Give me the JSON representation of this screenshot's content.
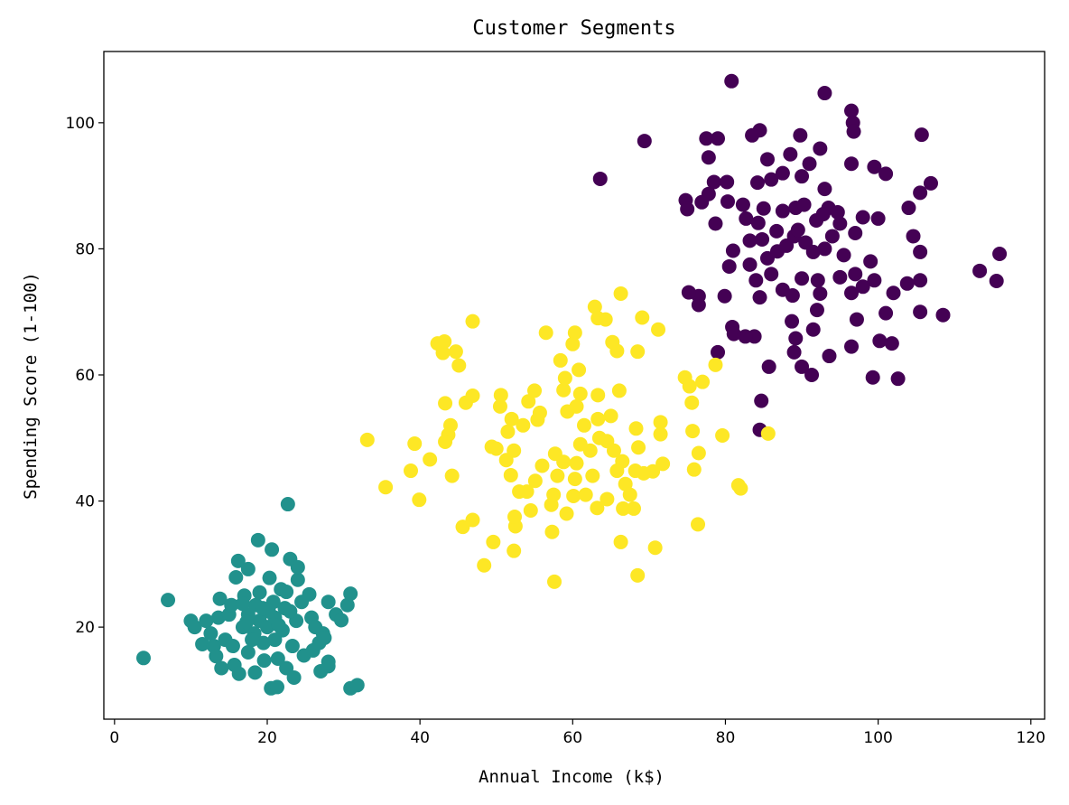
{
  "chart_data": {
    "type": "scatter",
    "title": "Customer Segments",
    "xlabel": "Annual Income (k$)",
    "ylabel": "Spending Score (1-100)",
    "xlim": [
      -1.4,
      121.8
    ],
    "ylim": [
      5.4,
      111.3
    ],
    "xticks": [
      0,
      20,
      40,
      60,
      80,
      100,
      120
    ],
    "yticks": [
      20,
      40,
      60,
      80,
      100
    ],
    "grid": false,
    "series": [
      {
        "name": "cluster-0",
        "color": "#440154",
        "points": [
          [
            80.8,
            106.6
          ],
          [
            93,
            104.7
          ],
          [
            63.6,
            91.1
          ],
          [
            69.4,
            97.1
          ],
          [
            96.5,
            101.9
          ],
          [
            96.7,
            100
          ],
          [
            96.8,
            98.6
          ],
          [
            105.7,
            98.1
          ],
          [
            115.9,
            79.2
          ],
          [
            115.5,
            74.9
          ],
          [
            113.3,
            76.5
          ],
          [
            108.5,
            69.5
          ],
          [
            106.9,
            90.4
          ],
          [
            105.5,
            88.9
          ],
          [
            99.5,
            93
          ],
          [
            101,
            91.9
          ],
          [
            96.5,
            93.5
          ],
          [
            92.4,
            95.9
          ],
          [
            89.8,
            98
          ],
          [
            84.5,
            98.8
          ],
          [
            83.5,
            98
          ],
          [
            77.5,
            97.5
          ],
          [
            79,
            97.5
          ],
          [
            77.8,
            94.5
          ],
          [
            78.5,
            90.6
          ],
          [
            80.2,
            90.6
          ],
          [
            74.8,
            87.7
          ],
          [
            75,
            86.3
          ],
          [
            76.9,
            87.4
          ],
          [
            77.8,
            88.7
          ],
          [
            80.3,
            87.5
          ],
          [
            82.3,
            87
          ],
          [
            78.7,
            84
          ],
          [
            82.7,
            84.8
          ],
          [
            84.3,
            84.1
          ],
          [
            85,
            86.4
          ],
          [
            84.2,
            90.5
          ],
          [
            85.5,
            94.2
          ],
          [
            86,
            91
          ],
          [
            87.5,
            92
          ],
          [
            88.5,
            95
          ],
          [
            90,
            91.5
          ],
          [
            91,
            93.5
          ],
          [
            93,
            89.5
          ],
          [
            93.5,
            86.5
          ],
          [
            95,
            84
          ],
          [
            97,
            82.5
          ],
          [
            98,
            85
          ],
          [
            100,
            84.8
          ],
          [
            104,
            86.5
          ],
          [
            104.6,
            82
          ],
          [
            105.5,
            79.5
          ],
          [
            105.5,
            75
          ],
          [
            103.8,
            74.5
          ],
          [
            102,
            73
          ],
          [
            101,
            69.8
          ],
          [
            105.5,
            70
          ],
          [
            101.8,
            65
          ],
          [
            100.2,
            65.4
          ],
          [
            99.3,
            59.6
          ],
          [
            102.6,
            59.4
          ],
          [
            96.5,
            64.5
          ],
          [
            97.2,
            68.8
          ],
          [
            93.6,
            63
          ],
          [
            91.3,
            60
          ],
          [
            90,
            61.3
          ],
          [
            89,
            63.6
          ],
          [
            89.2,
            65.8
          ],
          [
            88.7,
            68.5
          ],
          [
            91.5,
            67.2
          ],
          [
            92,
            70.3
          ],
          [
            92.4,
            72.9
          ],
          [
            92.1,
            75
          ],
          [
            90,
            75.3
          ],
          [
            88.8,
            72.6
          ],
          [
            87.5,
            73.5
          ],
          [
            86,
            76
          ],
          [
            85.5,
            78.5
          ],
          [
            86.8,
            79.6
          ],
          [
            88,
            80.5
          ],
          [
            89,
            82
          ],
          [
            89.5,
            83
          ],
          [
            90.5,
            81
          ],
          [
            91.5,
            79.5
          ],
          [
            93,
            80
          ],
          [
            94,
            82
          ],
          [
            95.5,
            79
          ],
          [
            97,
            76
          ],
          [
            98,
            74
          ],
          [
            99.5,
            75
          ],
          [
            99,
            78
          ],
          [
            96.5,
            73
          ],
          [
            95,
            75.5
          ],
          [
            84.5,
            72.3
          ],
          [
            84,
            75
          ],
          [
            83.2,
            77.5
          ],
          [
            80.5,
            77.2
          ],
          [
            81,
            79.7
          ],
          [
            84.8,
            81.5
          ],
          [
            83.2,
            81.3
          ],
          [
            86.7,
            82.8
          ],
          [
            87.5,
            86
          ],
          [
            89.2,
            86.5
          ],
          [
            90.3,
            87
          ],
          [
            91.9,
            84.5
          ],
          [
            92.8,
            85.5
          ],
          [
            94.7,
            85.8
          ],
          [
            84.7,
            55.9
          ],
          [
            85.7,
            61.3
          ],
          [
            83.8,
            66.1
          ],
          [
            82.6,
            66.1
          ],
          [
            80.9,
            67.6
          ],
          [
            81.1,
            66.5
          ],
          [
            79,
            63.6
          ],
          [
            79.9,
            72.5
          ],
          [
            76.5,
            72.5
          ],
          [
            76.5,
            71.1
          ],
          [
            75.2,
            73.1
          ],
          [
            84.5,
            51.3
          ]
        ]
      },
      {
        "name": "cluster-1",
        "color": "#21918c",
        "points": [
          [
            3.8,
            15.1
          ],
          [
            7,
            24.3
          ],
          [
            10,
            21
          ],
          [
            10.5,
            20
          ],
          [
            11.5,
            17.3
          ],
          [
            12,
            21
          ],
          [
            12.6,
            19
          ],
          [
            13,
            17
          ],
          [
            13.3,
            15.4
          ],
          [
            13.6,
            21.5
          ],
          [
            13.8,
            24.5
          ],
          [
            14,
            13.5
          ],
          [
            14.5,
            18
          ],
          [
            15,
            22
          ],
          [
            15.3,
            23.5
          ],
          [
            15.5,
            17
          ],
          [
            15.7,
            14
          ],
          [
            15.9,
            27.9
          ],
          [
            16.3,
            12.6
          ],
          [
            16.2,
            30.5
          ],
          [
            16.8,
            20
          ],
          [
            17,
            25
          ],
          [
            17.5,
            29.2
          ],
          [
            17.5,
            22
          ],
          [
            17.5,
            16
          ],
          [
            18.3,
            19
          ],
          [
            18.5,
            23.5
          ],
          [
            18.4,
            12.8
          ],
          [
            18.8,
            33.8
          ],
          [
            19,
            21
          ],
          [
            19,
            25.5
          ],
          [
            19.5,
            17.5
          ],
          [
            19.6,
            14.7
          ],
          [
            20,
            20
          ],
          [
            20.3,
            27.8
          ],
          [
            20.5,
            10.3
          ],
          [
            20.6,
            32.3
          ],
          [
            20.8,
            24
          ],
          [
            21,
            18
          ],
          [
            21,
            21.5
          ],
          [
            21.4,
            15
          ],
          [
            21.3,
            10.5
          ],
          [
            21.8,
            26
          ],
          [
            22,
            19.5
          ],
          [
            22.3,
            23
          ],
          [
            22.5,
            13.5
          ],
          [
            22.7,
            39.5
          ],
          [
            23,
            30.8
          ],
          [
            23.3,
            17
          ],
          [
            23.5,
            12
          ],
          [
            23.8,
            21
          ],
          [
            24,
            27.5
          ],
          [
            24,
            29.5
          ],
          [
            24.5,
            24
          ],
          [
            24.8,
            15.5
          ],
          [
            25.5,
            25.2
          ],
          [
            25.8,
            21.5
          ],
          [
            26,
            16.3
          ],
          [
            26.3,
            20
          ],
          [
            26.8,
            17.5
          ],
          [
            27,
            13
          ],
          [
            27.3,
            19
          ],
          [
            27.5,
            18.3
          ],
          [
            28,
            13.8
          ],
          [
            28,
            24
          ],
          [
            28,
            14.5
          ],
          [
            29,
            22
          ],
          [
            29.7,
            21.1
          ],
          [
            30.5,
            23.5
          ],
          [
            30.9,
            25.3
          ],
          [
            30.9,
            10.3
          ],
          [
            31.8,
            10.8
          ],
          [
            20.2,
            22.5
          ],
          [
            21.5,
            20.3
          ],
          [
            19.4,
            23
          ],
          [
            18,
            18
          ],
          [
            23,
            22.5
          ],
          [
            22.5,
            25.6
          ],
          [
            17.3,
            20.8
          ],
          [
            16.8,
            23.7
          ]
        ]
      },
      {
        "name": "cluster-2",
        "color": "#fde725",
        "points": [
          [
            33.1,
            49.7
          ],
          [
            35.5,
            42.2
          ],
          [
            39.9,
            40.2
          ],
          [
            38.8,
            44.8
          ],
          [
            39.3,
            49.1
          ],
          [
            41.3,
            46.6
          ],
          [
            42.3,
            65
          ],
          [
            43,
            63.5
          ],
          [
            43.2,
            65.3
          ],
          [
            44.7,
            63.7
          ],
          [
            45.1,
            61.5
          ],
          [
            43.3,
            55.5
          ],
          [
            44,
            52
          ],
          [
            43.7,
            50.5
          ],
          [
            43.3,
            49.4
          ],
          [
            44.2,
            44
          ],
          [
            45.6,
            35.9
          ],
          [
            46.9,
            37
          ],
          [
            46.9,
            68.5
          ],
          [
            46,
            55.6
          ],
          [
            46.9,
            56.7
          ],
          [
            48.4,
            29.8
          ],
          [
            49.6,
            33.5
          ],
          [
            49.4,
            48.6
          ],
          [
            50,
            48.3
          ],
          [
            50.6,
            56.8
          ],
          [
            50.5,
            55
          ],
          [
            51.5,
            51
          ],
          [
            52,
            53
          ],
          [
            52.3,
            32.1
          ],
          [
            52.5,
            36
          ],
          [
            52.4,
            37.5
          ],
          [
            53,
            41.5
          ],
          [
            51.9,
            44.1
          ],
          [
            51.3,
            46.5
          ],
          [
            52.3,
            48
          ],
          [
            53.5,
            52
          ],
          [
            54.2,
            55.8
          ],
          [
            55,
            57.5
          ],
          [
            55.4,
            52.9
          ],
          [
            55.7,
            54
          ],
          [
            54,
            41.5
          ],
          [
            54.5,
            38.5
          ],
          [
            55.1,
            43.2
          ],
          [
            56,
            45.6
          ],
          [
            56.5,
            66.7
          ],
          [
            57.3,
            35.1
          ],
          [
            57.6,
            27.2
          ],
          [
            57.2,
            39.4
          ],
          [
            57.5,
            41
          ],
          [
            58,
            44
          ],
          [
            57.7,
            47.5
          ],
          [
            58.8,
            46.2
          ],
          [
            59.3,
            54.2
          ],
          [
            58.8,
            57.6
          ],
          [
            59,
            59.5
          ],
          [
            58.4,
            62.3
          ],
          [
            60,
            64.9
          ],
          [
            60.3,
            66.7
          ],
          [
            60.8,
            60.8
          ],
          [
            61,
            57
          ],
          [
            60.5,
            55
          ],
          [
            61.5,
            52
          ],
          [
            61,
            49
          ],
          [
            60.5,
            46
          ],
          [
            60.3,
            43.5
          ],
          [
            60.1,
            40.8
          ],
          [
            59.2,
            38
          ],
          [
            61.7,
            41
          ],
          [
            62.6,
            44
          ],
          [
            62.3,
            48
          ],
          [
            63.5,
            50
          ],
          [
            63.3,
            53
          ],
          [
            63.3,
            56.8
          ],
          [
            62.9,
            70.8
          ],
          [
            63.3,
            69
          ],
          [
            64.3,
            68.8
          ],
          [
            65.2,
            65.2
          ],
          [
            65.8,
            63.8
          ],
          [
            66.1,
            57.5
          ],
          [
            65,
            53.5
          ],
          [
            64.5,
            49.5
          ],
          [
            65.4,
            48
          ],
          [
            65.8,
            44.8
          ],
          [
            66.5,
            46.3
          ],
          [
            66.9,
            42.7
          ],
          [
            64.5,
            40.3
          ],
          [
            63.2,
            38.9
          ],
          [
            66.3,
            33.5
          ],
          [
            66.6,
            38.8
          ],
          [
            66.3,
            72.9
          ],
          [
            67.5,
            41
          ],
          [
            68,
            38.8
          ],
          [
            68.2,
            44.8
          ],
          [
            68.6,
            48.5
          ],
          [
            68.3,
            51.5
          ],
          [
            68.5,
            63.7
          ],
          [
            69.1,
            69.1
          ],
          [
            68.5,
            28.2
          ],
          [
            69.3,
            44.4
          ],
          [
            70.5,
            44.7
          ],
          [
            70.8,
            32.6
          ],
          [
            71.2,
            67.2
          ],
          [
            71.5,
            50.6
          ],
          [
            71.5,
            52.5
          ],
          [
            71.8,
            45.9
          ],
          [
            74.7,
            59.6
          ],
          [
            75.3,
            58.2
          ],
          [
            75.6,
            55.6
          ],
          [
            75.7,
            51.1
          ],
          [
            75.9,
            45
          ],
          [
            76.4,
            36.3
          ],
          [
            76.5,
            47.6
          ],
          [
            77,
            58.9
          ],
          [
            78.7,
            61.6
          ],
          [
            79.6,
            50.4
          ],
          [
            81.7,
            42.5
          ],
          [
            82,
            42
          ],
          [
            85.6,
            50.7
          ]
        ]
      }
    ]
  }
}
